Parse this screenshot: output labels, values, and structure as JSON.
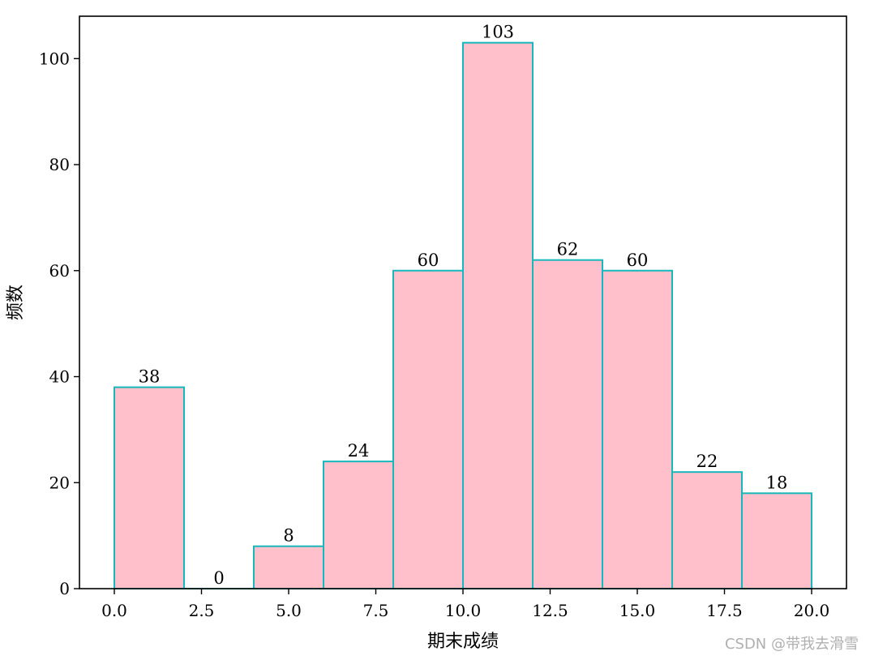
{
  "chart_data": {
    "type": "bar",
    "subtype": "histogram",
    "bin_edges": [
      0,
      2,
      4,
      6,
      8,
      10,
      12,
      14,
      16,
      18,
      20
    ],
    "values": [
      38,
      0,
      8,
      24,
      60,
      103,
      62,
      60,
      22,
      18
    ],
    "xlabel": "期末成绩",
    "ylabel": "频数",
    "xlim": [
      -1,
      21
    ],
    "ylim": [
      0,
      108
    ],
    "xticks": [
      0.0,
      2.5,
      5.0,
      7.5,
      10.0,
      12.5,
      15.0,
      17.5,
      20.0
    ],
    "xtick_labels": [
      "0.0",
      "2.5",
      "5.0",
      "7.5",
      "10.0",
      "12.5",
      "15.0",
      "17.5",
      "20.0"
    ],
    "yticks": [
      0,
      20,
      40,
      60,
      80,
      100
    ],
    "ytick_labels": [
      "0",
      "20",
      "40",
      "60",
      "80",
      "100"
    ],
    "grid": false,
    "colors": {
      "bar_fill": "#ffc0cb",
      "bar_edge": "#17b8bb",
      "axes": "#000000"
    }
  },
  "watermark": "CSDN @带我去滑雪"
}
